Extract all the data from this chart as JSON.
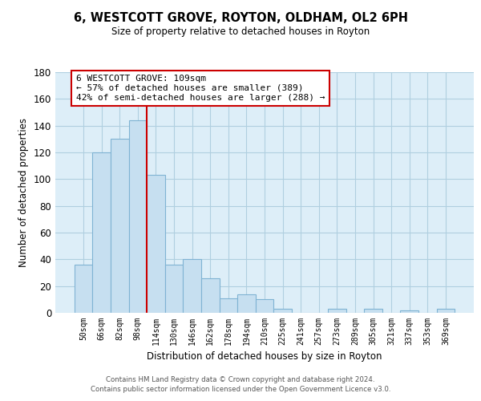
{
  "title": "6, WESTCOTT GROVE, ROYTON, OLDHAM, OL2 6PH",
  "subtitle": "Size of property relative to detached houses in Royton",
  "xlabel": "Distribution of detached houses by size in Royton",
  "ylabel": "Number of detached properties",
  "bar_labels": [
    "50sqm",
    "66sqm",
    "82sqm",
    "98sqm",
    "114sqm",
    "130sqm",
    "146sqm",
    "162sqm",
    "178sqm",
    "194sqm",
    "210sqm",
    "225sqm",
    "241sqm",
    "257sqm",
    "273sqm",
    "289sqm",
    "305sqm",
    "321sqm",
    "337sqm",
    "353sqm",
    "369sqm"
  ],
  "bar_heights": [
    36,
    120,
    130,
    144,
    103,
    36,
    40,
    26,
    11,
    14,
    10,
    3,
    0,
    0,
    3,
    0,
    3,
    0,
    2,
    0,
    3
  ],
  "bar_color": "#c6dff0",
  "bar_edge_color": "#7fb3d3",
  "vline_color": "#cc0000",
  "annotation_title": "6 WESTCOTT GROVE: 109sqm",
  "annotation_line1": "← 57% of detached houses are smaller (389)",
  "annotation_line2": "42% of semi-detached houses are larger (288) →",
  "annotation_box_color": "#ffffff",
  "annotation_box_edge": "#cc0000",
  "ylim": [
    0,
    180
  ],
  "yticks": [
    0,
    20,
    40,
    60,
    80,
    100,
    120,
    140,
    160,
    180
  ],
  "footer_line1": "Contains HM Land Registry data © Crown copyright and database right 2024.",
  "footer_line2": "Contains public sector information licensed under the Open Government Licence v3.0.",
  "bg_color": "#ffffff",
  "plot_bg_color": "#ddeef8",
  "grid_color": "#b0cfe0"
}
